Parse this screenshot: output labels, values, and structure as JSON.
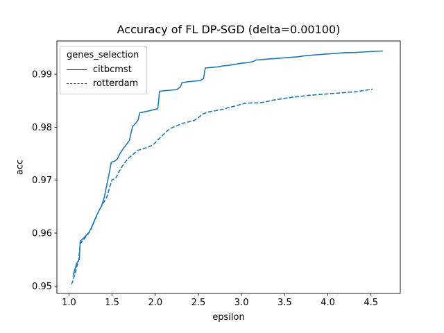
{
  "chart_data": {
    "type": "line",
    "title": "Accuracy of FL DP-SGD (delta=0.00100)",
    "xlabel": "epsilon",
    "ylabel": "acc",
    "xlim": [
      0.86,
      4.84
    ],
    "ylim": [
      0.9486,
      0.9963
    ],
    "grid": false,
    "xticks": {
      "values": [
        1.0,
        1.5,
        2.0,
        2.5,
        3.0,
        3.5,
        4.0,
        4.5
      ],
      "labels": [
        "1.0",
        "1.5",
        "2.0",
        "2.5",
        "3.0",
        "3.5",
        "4.0",
        "4.5"
      ]
    },
    "yticks": {
      "values": [
        0.95,
        0.96,
        0.97,
        0.98,
        0.99
      ],
      "labels": [
        "0.95",
        "0.96",
        "0.97",
        "0.98",
        "0.99"
      ]
    },
    "legend": {
      "title": "genes_selection",
      "position": "upper-left",
      "sample_color": "#333333"
    },
    "series": [
      {
        "name": "citbcmst",
        "style": "solid",
        "color": "#1f77b4",
        "points": [
          [
            1.05,
            0.952
          ],
          [
            1.06,
            0.9527
          ],
          [
            1.08,
            0.9538
          ],
          [
            1.1,
            0.9546
          ],
          [
            1.12,
            0.955
          ],
          [
            1.13,
            0.9585
          ],
          [
            1.16,
            0.9589
          ],
          [
            1.19,
            0.9594
          ],
          [
            1.23,
            0.9601
          ],
          [
            1.26,
            0.961
          ],
          [
            1.29,
            0.9622
          ],
          [
            1.32,
            0.9633
          ],
          [
            1.35,
            0.9643
          ],
          [
            1.38,
            0.9652
          ],
          [
            1.41,
            0.9668
          ],
          [
            1.43,
            0.9684
          ],
          [
            1.45,
            0.97
          ],
          [
            1.47,
            0.9716
          ],
          [
            1.49,
            0.9734
          ],
          [
            1.53,
            0.9736
          ],
          [
            1.56,
            0.974
          ],
          [
            1.59,
            0.975
          ],
          [
            1.63,
            0.976
          ],
          [
            1.67,
            0.9768
          ],
          [
            1.7,
            0.9775
          ],
          [
            1.72,
            0.979
          ],
          [
            1.74,
            0.9802
          ],
          [
            1.77,
            0.9807
          ],
          [
            1.8,
            0.9813
          ],
          [
            1.82,
            0.9827
          ],
          [
            1.87,
            0.9829
          ],
          [
            1.93,
            0.9831
          ],
          [
            1.98,
            0.9833
          ],
          [
            2.03,
            0.9835
          ],
          [
            2.05,
            0.9868
          ],
          [
            2.11,
            0.9869
          ],
          [
            2.18,
            0.987
          ],
          [
            2.25,
            0.9871
          ],
          [
            2.29,
            0.9876
          ],
          [
            2.31,
            0.9884
          ],
          [
            2.38,
            0.9886
          ],
          [
            2.45,
            0.9887
          ],
          [
            2.52,
            0.9888
          ],
          [
            2.56,
            0.9892
          ],
          [
            2.58,
            0.9912
          ],
          [
            2.65,
            0.9913
          ],
          [
            2.72,
            0.9914
          ],
          [
            2.79,
            0.9916
          ],
          [
            2.86,
            0.9917
          ],
          [
            2.93,
            0.9919
          ],
          [
            3.0,
            0.9921
          ],
          [
            3.07,
            0.9922
          ],
          [
            3.13,
            0.9924
          ],
          [
            3.17,
            0.9927
          ],
          [
            3.25,
            0.9928
          ],
          [
            3.33,
            0.9929
          ],
          [
            3.41,
            0.993
          ],
          [
            3.49,
            0.9931
          ],
          [
            3.57,
            0.9932
          ],
          [
            3.65,
            0.9933
          ],
          [
            3.73,
            0.9935
          ],
          [
            3.81,
            0.9936
          ],
          [
            3.89,
            0.9937
          ],
          [
            3.97,
            0.9938
          ],
          [
            4.05,
            0.9939
          ],
          [
            4.13,
            0.994
          ],
          [
            4.21,
            0.9941
          ],
          [
            4.3,
            0.9941
          ],
          [
            4.4,
            0.9942
          ],
          [
            4.5,
            0.9943
          ],
          [
            4.64,
            0.9944
          ]
        ]
      },
      {
        "name": "rotterdam",
        "style": "dashed",
        "color": "#1f77b4",
        "points": [
          [
            1.03,
            0.9503
          ],
          [
            1.05,
            0.9512
          ],
          [
            1.07,
            0.9524
          ],
          [
            1.09,
            0.9536
          ],
          [
            1.11,
            0.9546
          ],
          [
            1.13,
            0.958
          ],
          [
            1.16,
            0.9586
          ],
          [
            1.19,
            0.9592
          ],
          [
            1.23,
            0.96
          ],
          [
            1.26,
            0.9609
          ],
          [
            1.29,
            0.9621
          ],
          [
            1.32,
            0.9632
          ],
          [
            1.35,
            0.9643
          ],
          [
            1.38,
            0.9652
          ],
          [
            1.41,
            0.966
          ],
          [
            1.44,
            0.9669
          ],
          [
            1.47,
            0.9686
          ],
          [
            1.5,
            0.9701
          ],
          [
            1.54,
            0.9703
          ],
          [
            1.58,
            0.9716
          ],
          [
            1.62,
            0.9727
          ],
          [
            1.66,
            0.9736
          ],
          [
            1.7,
            0.9743
          ],
          [
            1.74,
            0.9748
          ],
          [
            1.79,
            0.9756
          ],
          [
            1.85,
            0.9759
          ],
          [
            1.91,
            0.9762
          ],
          [
            1.97,
            0.9766
          ],
          [
            2.03,
            0.9776
          ],
          [
            2.08,
            0.9784
          ],
          [
            2.13,
            0.9792
          ],
          [
            2.18,
            0.9798
          ],
          [
            2.24,
            0.9802
          ],
          [
            2.31,
            0.9807
          ],
          [
            2.38,
            0.981
          ],
          [
            2.45,
            0.9813
          ],
          [
            2.5,
            0.9818
          ],
          [
            2.55,
            0.9825
          ],
          [
            2.62,
            0.9829
          ],
          [
            2.69,
            0.9831
          ],
          [
            2.76,
            0.9833
          ],
          [
            2.83,
            0.9836
          ],
          [
            2.9,
            0.9839
          ],
          [
            2.97,
            0.9842
          ],
          [
            3.04,
            0.9845
          ],
          [
            3.12,
            0.9846
          ],
          [
            3.2,
            0.9846
          ],
          [
            3.28,
            0.9848
          ],
          [
            3.36,
            0.9851
          ],
          [
            3.44,
            0.9853
          ],
          [
            3.52,
            0.9855
          ],
          [
            3.6,
            0.9857
          ],
          [
            3.68,
            0.9858
          ],
          [
            3.76,
            0.986
          ],
          [
            3.84,
            0.9861
          ],
          [
            3.92,
            0.9862
          ],
          [
            4.0,
            0.9863
          ],
          [
            4.08,
            0.9864
          ],
          [
            4.16,
            0.9865
          ],
          [
            4.24,
            0.9866
          ],
          [
            4.32,
            0.9867
          ],
          [
            4.4,
            0.9869
          ],
          [
            4.52,
            0.9872
          ]
        ]
      }
    ]
  }
}
